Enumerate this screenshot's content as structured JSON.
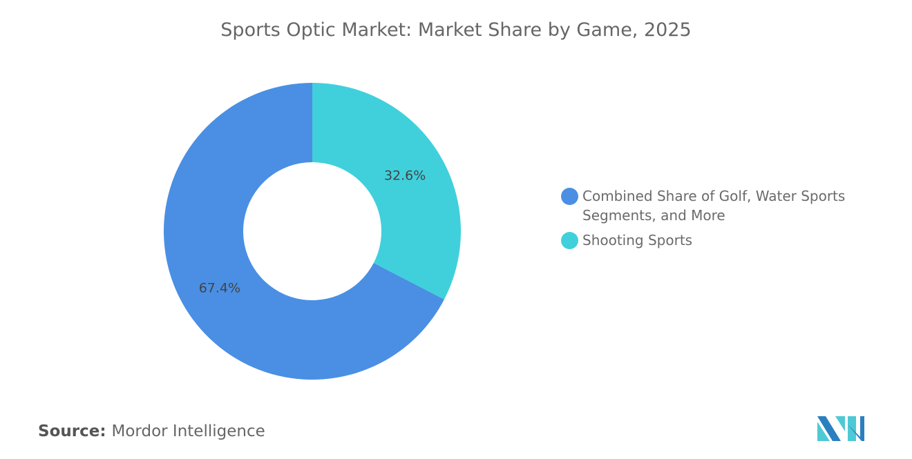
{
  "chart_data": {
    "type": "pie",
    "donut": true,
    "title": "Sports Optic Market: Market Share by Game, 2025",
    "start_angle": "12 o'clock, clockwise",
    "slices": [
      {
        "label": "Shooting Sports",
        "value": 32.6,
        "display": "32.6%",
        "color": "#40d0dc"
      },
      {
        "label": "Combined Share of Golf, Water Sports Segments, and More",
        "value": 67.4,
        "display": "67.4%",
        "color": "#4a8fe3"
      }
    ],
    "legend": {
      "placement": "right",
      "entries": [
        {
          "label": "Combined Share of Golf, Water Sports Segments, and More",
          "color": "#4a8fe3"
        },
        {
          "label": "Shooting Sports",
          "color": "#40d0dc"
        }
      ]
    }
  },
  "source": {
    "label": "Source:",
    "value": "Mordor Intelligence"
  },
  "logo": {
    "name": "Mordor Intelligence logo",
    "colors": [
      "#2a7fc0",
      "#4ec9d6"
    ]
  }
}
